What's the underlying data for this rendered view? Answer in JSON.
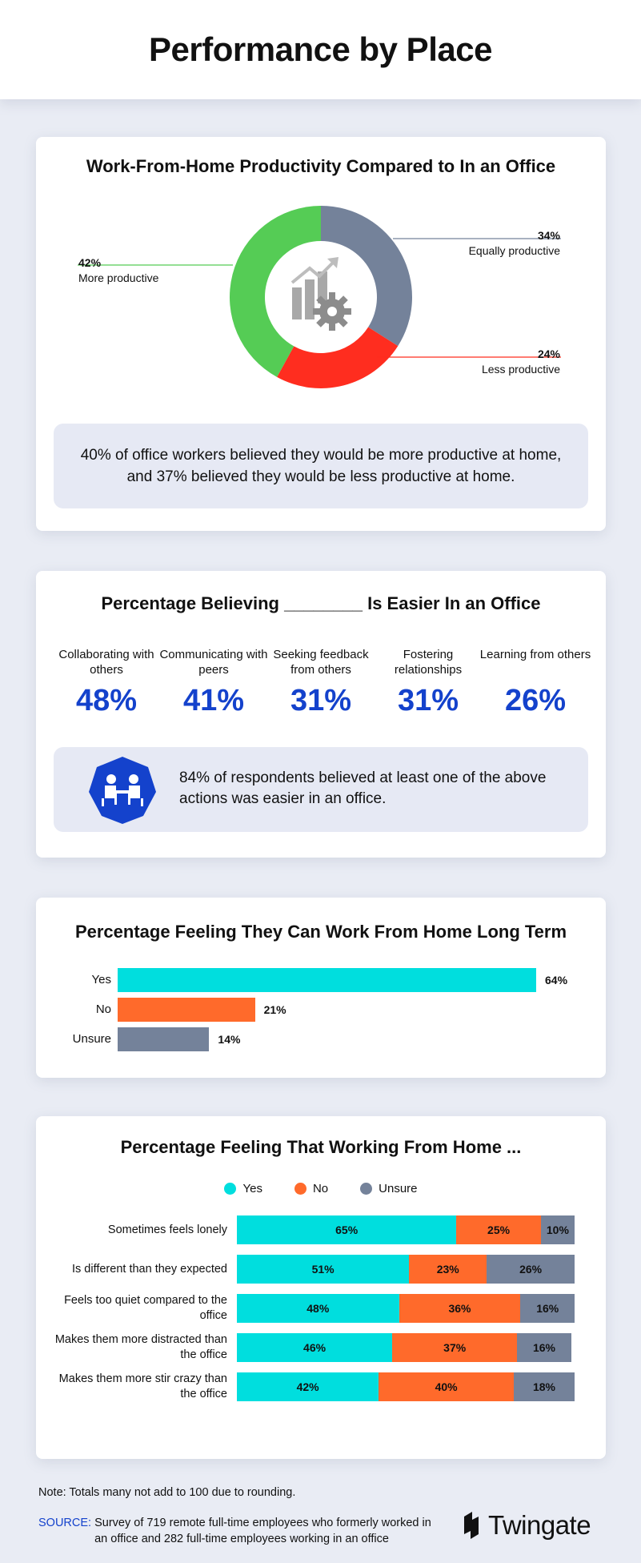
{
  "page_title": "Performance by Place",
  "colors": {
    "green": "#55cc55",
    "gray": "#74829a",
    "red": "#ff2d1f",
    "cyan": "#00dede",
    "orange": "#ff6a2b",
    "blue": "#1442cc"
  },
  "productivity": {
    "title": "Work-From-Home Productivity Compared to In an Office",
    "center_icon": "chart-gear-icon",
    "labels": {
      "more": {
        "pct": "42%",
        "text": "More productive"
      },
      "equal": {
        "pct": "34%",
        "text": "Equally productive"
      },
      "less": {
        "pct": "24%",
        "text": "Less productive"
      }
    },
    "callout": "40% of office workers believed they would be more productive at home, and 37% believed they would be less productive at home."
  },
  "easier": {
    "title": "Percentage Believing ________ Is Easier In an Office",
    "stats": [
      {
        "label": "Collaborating with others",
        "value": "48%"
      },
      {
        "label": "Communicating with peers",
        "value": "41%"
      },
      {
        "label": "Seeking feedback from others",
        "value": "31%"
      },
      {
        "label": "Fostering relationships",
        "value": "31%"
      },
      {
        "label": "Learning from others",
        "value": "26%"
      }
    ],
    "callout_icon": "meeting-icon",
    "callout": "84% of respondents believed at least one of the above actions was easier in an office."
  },
  "chart_data": [
    {
      "type": "pie",
      "title": "Work-From-Home Productivity Compared to In an Office",
      "categories": [
        "More productive",
        "Equally productive",
        "Less productive"
      ],
      "values": [
        42,
        34,
        24
      ]
    },
    {
      "type": "bar",
      "orientation": "horizontal",
      "title": "Percentage Feeling They Can Work From Home Long Term",
      "categories": [
        "Yes",
        "No",
        "Unsure"
      ],
      "values": [
        64,
        21,
        14
      ],
      "value_labels": [
        "64%",
        "21%",
        "14%"
      ],
      "xlim": [
        0,
        64
      ]
    },
    {
      "type": "bar",
      "orientation": "horizontal",
      "stacked": true,
      "title": "Percentage Feeling That Working From Home ...",
      "legend": "top",
      "categories": [
        "Sometimes feels lonely",
        "Is different than they expected",
        "Feels too quiet compared to the office",
        "Makes them more distracted than the office",
        "Makes them more stir crazy than the office"
      ],
      "series": [
        {
          "name": "Yes",
          "values": [
            65,
            51,
            48,
            46,
            42
          ],
          "labels": [
            "65%",
            "51%",
            "48%",
            "46%",
            "42%"
          ]
        },
        {
          "name": "No",
          "values": [
            25,
            23,
            36,
            37,
            40
          ],
          "labels": [
            "25%",
            "23%",
            "36%",
            "37%",
            "40%"
          ]
        },
        {
          "name": "Unsure",
          "values": [
            10,
            26,
            16,
            16,
            18
          ],
          "labels": [
            "10%",
            "26%",
            "16%",
            "16%",
            "18%"
          ]
        }
      ]
    }
  ],
  "footer": {
    "note": "Note: Totals many not add to 100 due to rounding.",
    "source_label": "SOURCE:",
    "source_text": "Survey of 719 remote full-time employees who formerly worked in an office and 282 full-time employees working in an office",
    "brand_icon": "twingate-logo-icon",
    "brand_name": "Twingate"
  }
}
